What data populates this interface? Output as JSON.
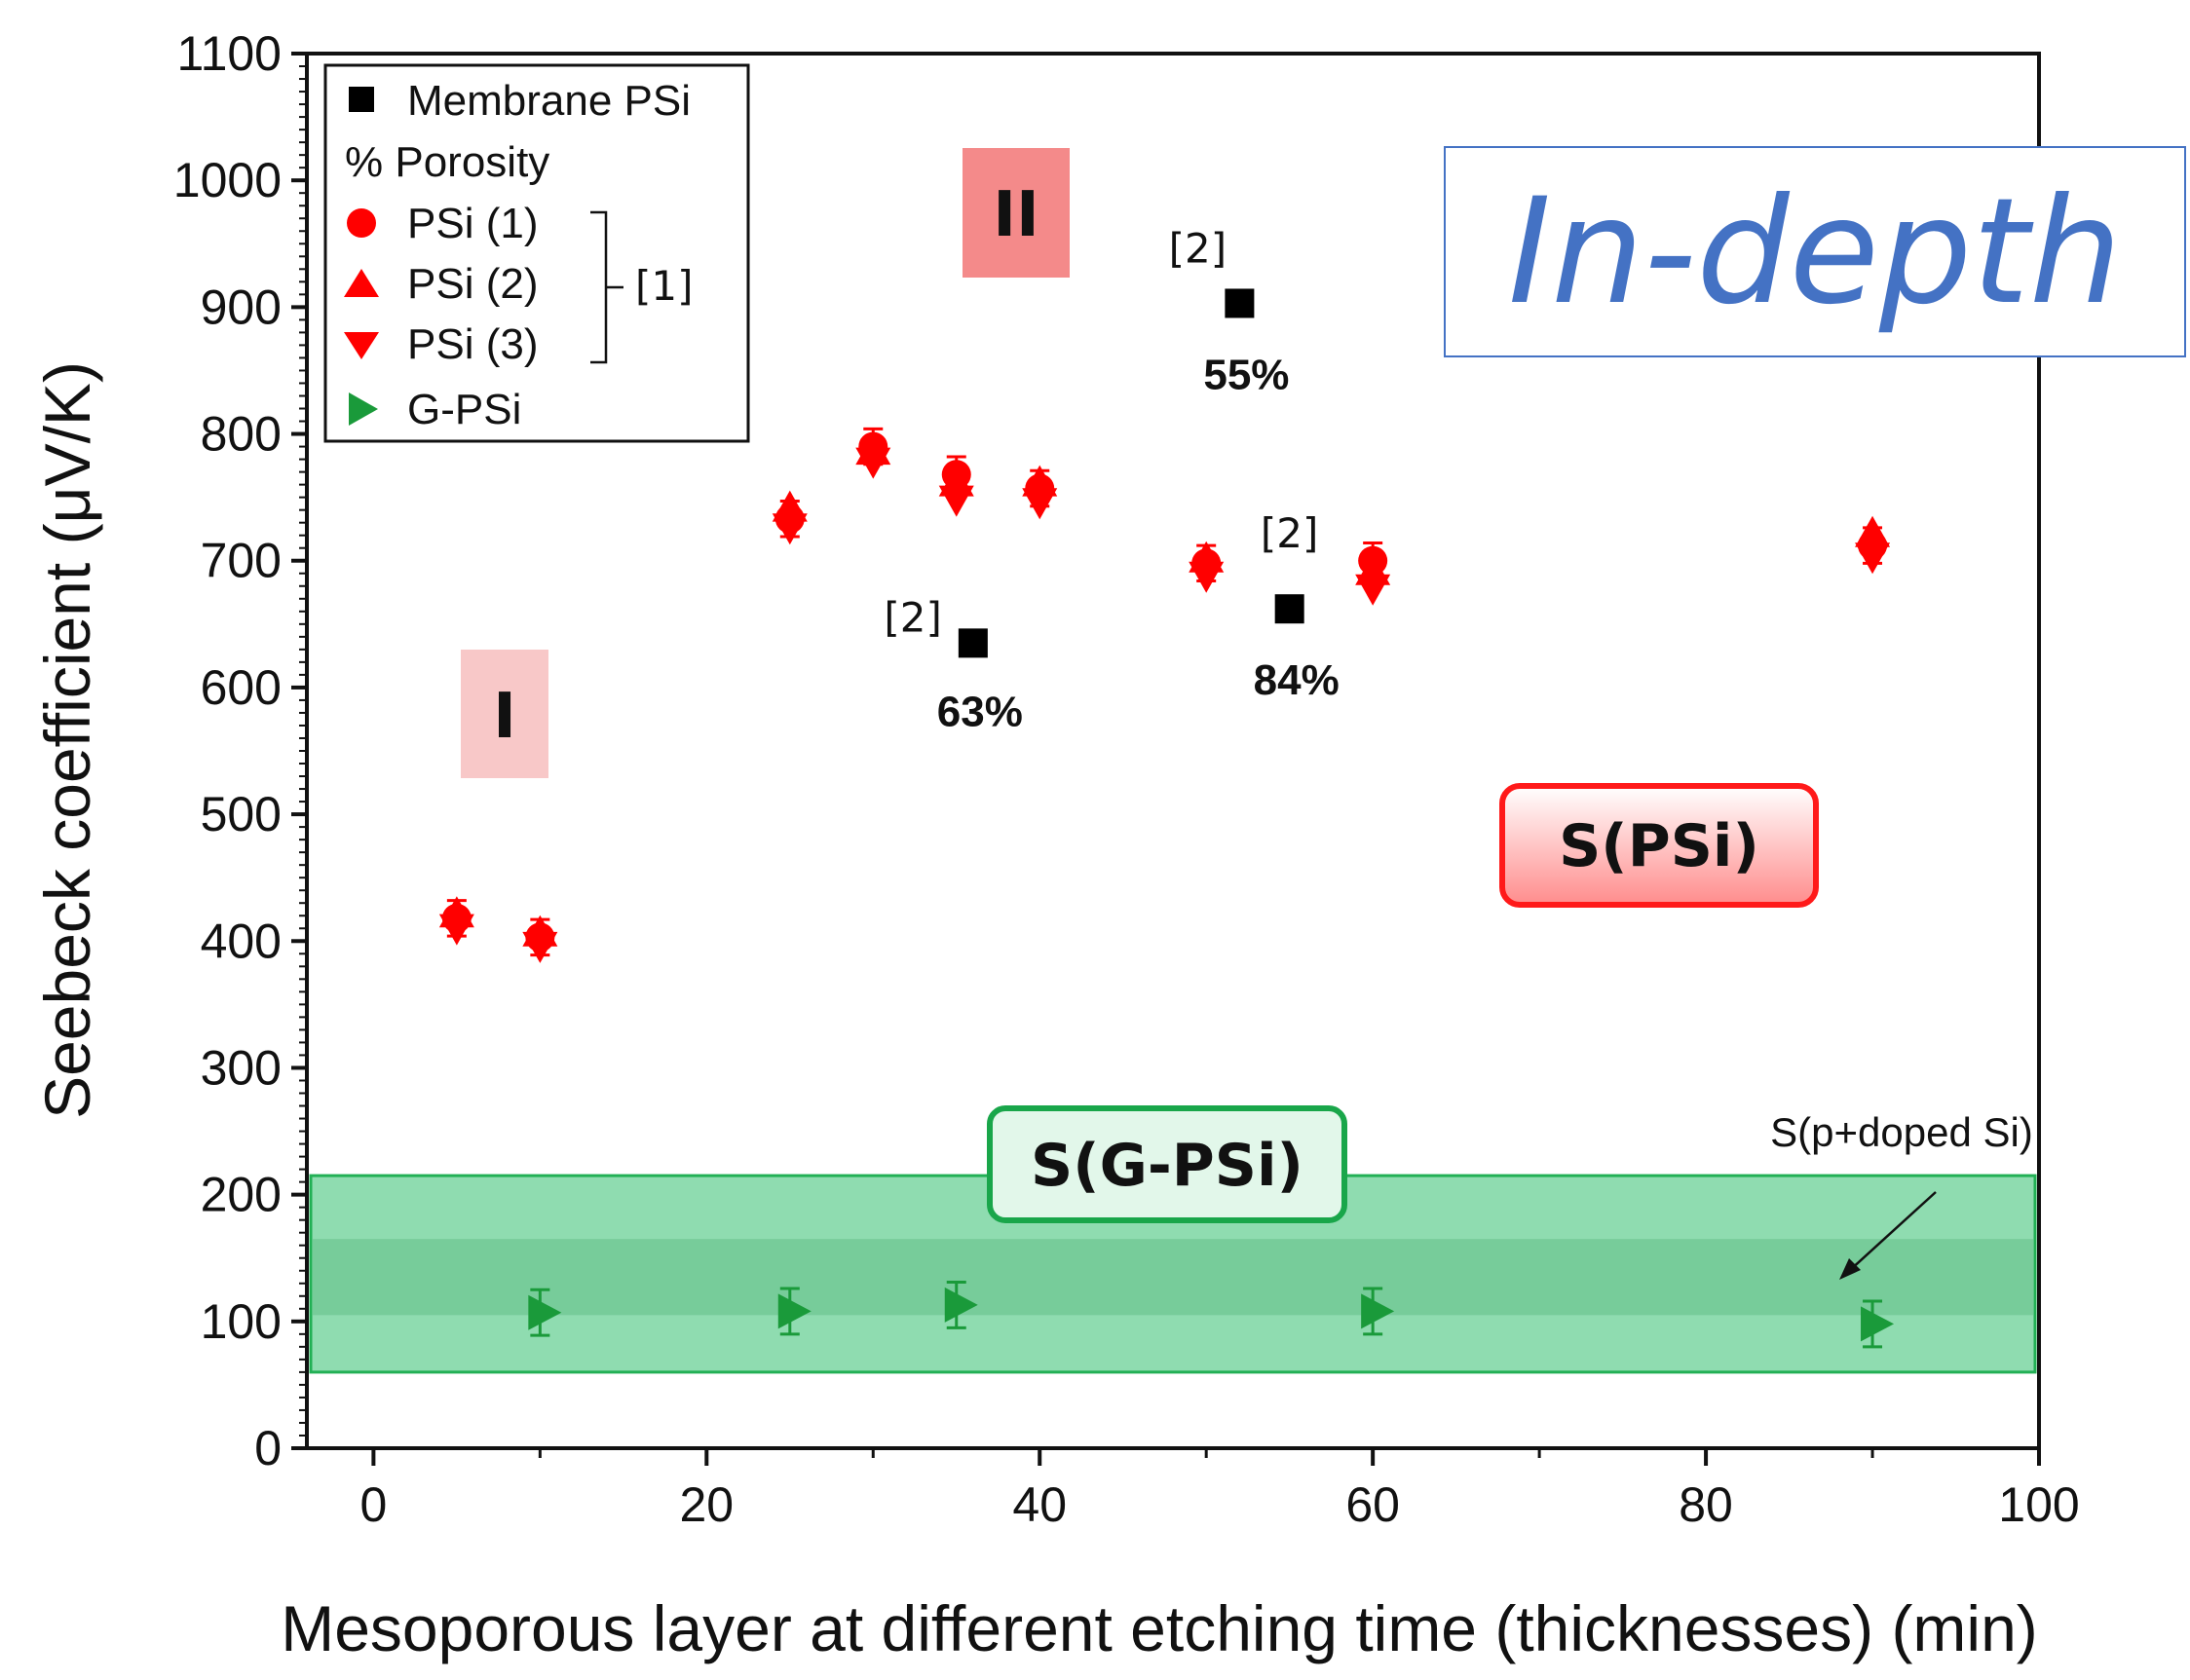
{
  "chart_data": {
    "type": "scatter",
    "title": "",
    "xlabel": "Mesoporous layer at different etching time (thicknesses) (min)",
    "ylabel": "Seebeck coefficient (μV/K)",
    "xlim": [
      -4,
      100
    ],
    "ylim": [
      0,
      1100
    ],
    "xticks": [
      0,
      20,
      40,
      60,
      80,
      100
    ],
    "yticks": [
      0,
      100,
      200,
      300,
      400,
      500,
      600,
      700,
      800,
      900,
      1000,
      1100
    ],
    "grid": false,
    "legend_position": "top-left",
    "legend": [
      {
        "label": "Membrane PSi",
        "marker": "square",
        "color": "#000000"
      },
      {
        "label": "% Porosity",
        "marker": "text",
        "color": "#000000"
      },
      {
        "label": "PSi (1)",
        "marker": "circle",
        "color": "#ff0000"
      },
      {
        "label": "PSi (2)",
        "marker": "triangle-up",
        "color": "#ff0000"
      },
      {
        "label": "PSi (3)",
        "marker": "triangle-down",
        "color": "#ff0000"
      },
      {
        "label": "G-PSi",
        "marker": "triangle-right",
        "color": "#1a9a3a"
      }
    ],
    "legend_bracket_label": "[1]",
    "series": [
      {
        "name": "Membrane PSi",
        "marker": "square",
        "color": "#000000",
        "points": [
          {
            "x": 36,
            "y": 635,
            "ref": "[2]",
            "porosity": "63%"
          },
          {
            "x": 52,
            "y": 903,
            "ref": "[2]",
            "porosity": "55%"
          },
          {
            "x": 55,
            "y": 662,
            "ref": "[2]",
            "porosity": "84%"
          }
        ]
      },
      {
        "name": "PSi (1)",
        "marker": "circle",
        "color": "#ff0000",
        "points": [
          [
            5,
            418
          ],
          [
            10,
            403
          ],
          [
            25,
            733
          ],
          [
            30,
            790
          ],
          [
            35,
            768
          ],
          [
            40,
            757
          ],
          [
            50,
            698
          ],
          [
            60,
            700
          ],
          [
            90,
            712
          ]
        ]
      },
      {
        "name": "PSi (2)",
        "marker": "triangle-up",
        "color": "#ff0000",
        "points": [
          [
            5,
            420
          ],
          [
            10,
            405
          ],
          [
            25,
            740
          ],
          [
            30,
            785
          ],
          [
            35,
            760
          ],
          [
            40,
            760
          ],
          [
            50,
            700
          ],
          [
            60,
            690
          ],
          [
            90,
            720
          ]
        ]
      },
      {
        "name": "PSi (3)",
        "marker": "triangle-down",
        "color": "#ff0000",
        "points": [
          [
            5,
            412
          ],
          [
            10,
            398
          ],
          [
            25,
            728
          ],
          [
            30,
            780
          ],
          [
            35,
            750
          ],
          [
            40,
            748
          ],
          [
            50,
            690
          ],
          [
            60,
            680
          ],
          [
            90,
            705
          ]
        ]
      },
      {
        "name": "G-PSi",
        "marker": "triangle-right",
        "color": "#1a9a3a",
        "points": [
          [
            10,
            107
          ],
          [
            25,
            108
          ],
          [
            35,
            113
          ],
          [
            60,
            108
          ],
          [
            90,
            98
          ]
        ],
        "error": 18
      }
    ],
    "bands": [
      {
        "name": "S(G-PSi)",
        "y0": 60,
        "y1": 215,
        "color": "#6fd39a"
      },
      {
        "name": "S(p+doped Si)",
        "y0": 105,
        "y1": 165,
        "color": "#5fbf85"
      }
    ],
    "annotations": {
      "region_1": "I",
      "region_2": "II",
      "spsi_box": "S(PSi)",
      "sgpsi_box": "S(G-PSi)",
      "pdoped_note": "S(p+doped Si)",
      "in_depth": "In-depth"
    }
  }
}
